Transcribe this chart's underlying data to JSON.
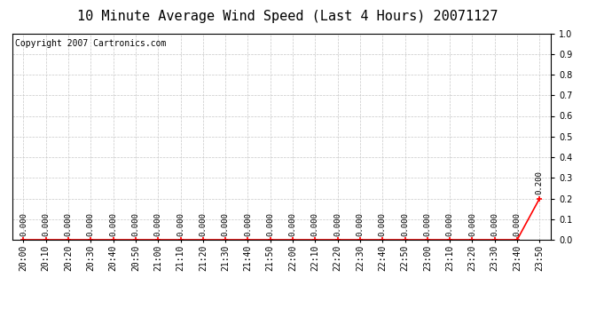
{
  "title": "10 Minute Average Wind Speed (Last 4 Hours) 20071127",
  "copyright_text": "Copyright 2007 Cartronics.com",
  "x_labels": [
    "20:00",
    "20:10",
    "20:20",
    "20:30",
    "20:40",
    "20:50",
    "21:00",
    "21:10",
    "21:20",
    "21:30",
    "21:40",
    "21:50",
    "22:00",
    "22:10",
    "22:20",
    "22:30",
    "22:40",
    "22:50",
    "23:00",
    "23:10",
    "23:20",
    "23:30",
    "23:40",
    "23:50"
  ],
  "y_values": [
    0.0,
    0.0,
    0.0,
    0.0,
    0.0,
    0.0,
    0.0,
    0.0,
    0.0,
    0.0,
    0.0,
    0.0,
    0.0,
    0.0,
    0.0,
    0.0,
    0.0,
    0.0,
    0.0,
    0.0,
    0.0,
    0.0,
    0.0,
    0.2
  ],
  "data_labels": [
    "0.000",
    "0.000",
    "0.000",
    "0.000",
    "0.000",
    "0.000",
    "0.000",
    "0.000",
    "0.000",
    "0.000",
    "0.000",
    "0.000",
    "0.000",
    "0.000",
    "0.000",
    "0.000",
    "0.000",
    "0.000",
    "0.000",
    "0.000",
    "0.000",
    "0.000",
    "0.000",
    "0.200"
  ],
  "line_color": "#ff0000",
  "background_color": "#ffffff",
  "plot_bg_color": "#ffffff",
  "grid_color": "#c8c8c8",
  "ylim": [
    0.0,
    1.0
  ],
  "yticks": [
    0.0,
    0.1,
    0.2,
    0.3,
    0.4,
    0.5,
    0.6,
    0.7,
    0.8,
    0.9,
    1.0
  ],
  "title_fontsize": 11,
  "copyright_fontsize": 7,
  "label_fontsize": 6.5,
  "tick_fontsize": 7
}
